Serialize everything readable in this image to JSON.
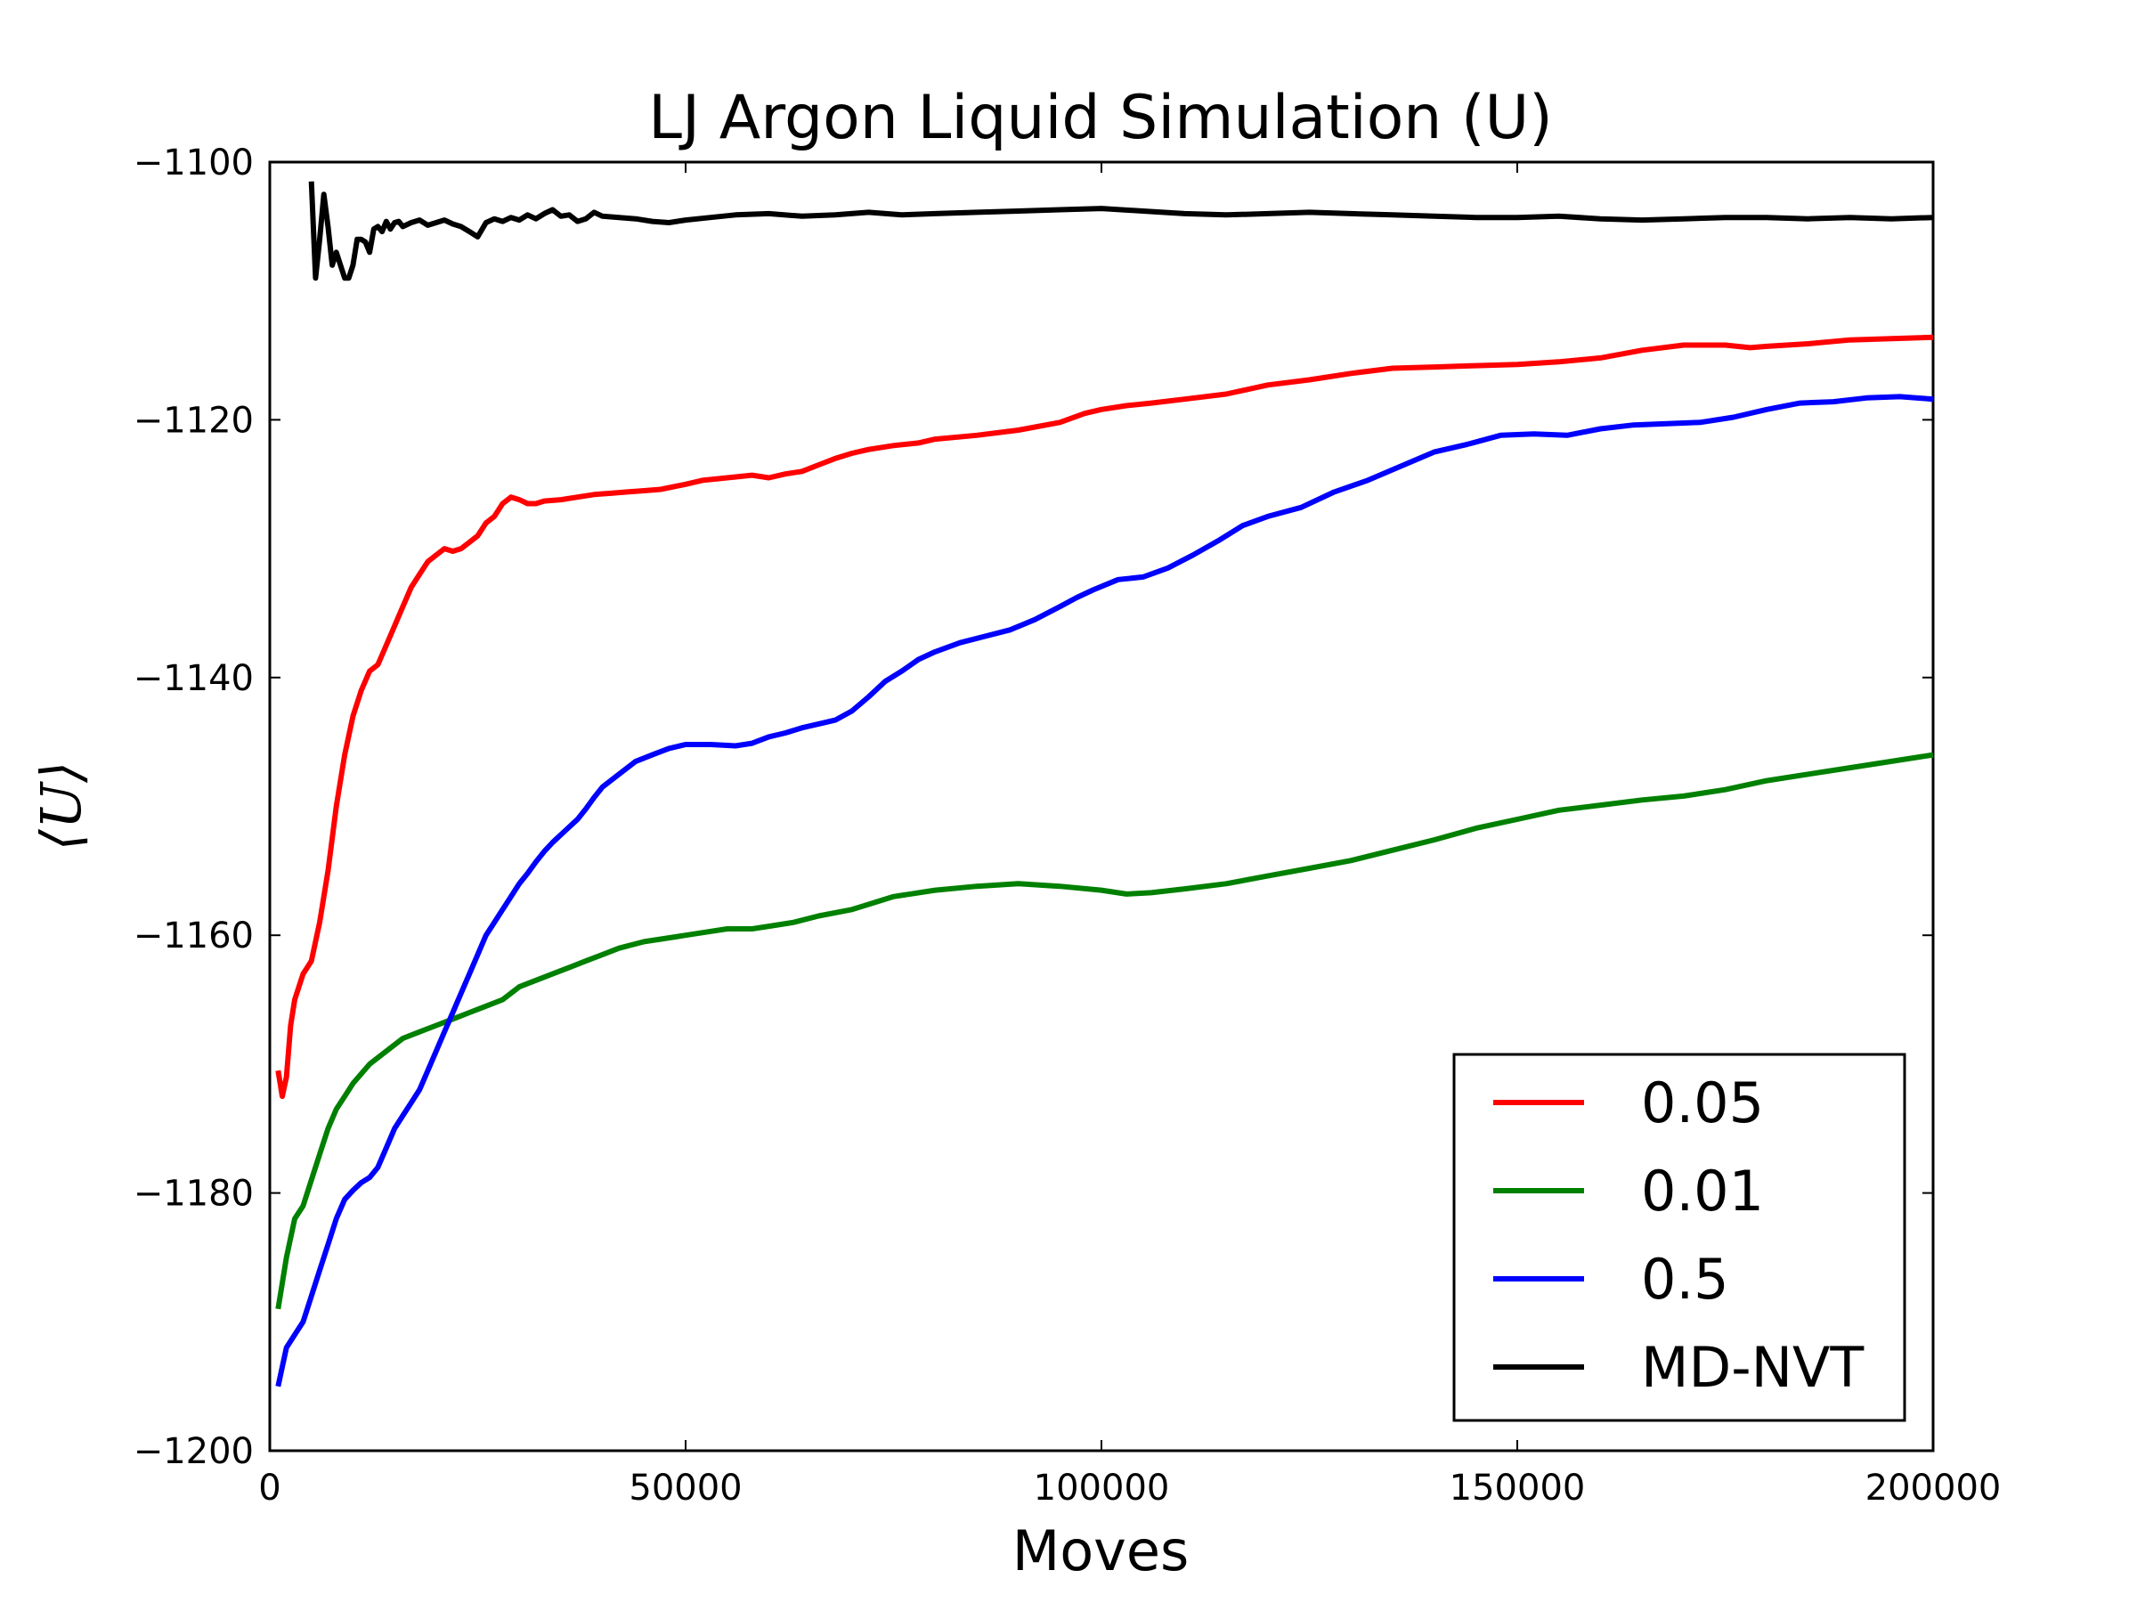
{
  "chart_data": {
    "type": "line",
    "title": "LJ Argon Liquid Simulation (U)",
    "xlabel": "Moves",
    "ylabel": "⟨U⟩",
    "xlim": [
      0,
      200000
    ],
    "ylim": [
      -1200,
      -1100
    ],
    "xticks": [
      0,
      50000,
      100000,
      150000,
      200000
    ],
    "xtick_labels": [
      "0",
      "50000",
      "100000",
      "150000",
      "200000"
    ],
    "yticks": [
      -1200,
      -1180,
      -1160,
      -1140,
      -1120,
      -1100
    ],
    "ytick_labels": [
      "−1200",
      "−1180",
      "−1160",
      "−1140",
      "−1120",
      "−1100"
    ],
    "grid": false,
    "legend_position": "lower-right",
    "series": [
      {
        "name": "0.05",
        "color": "#ff0000",
        "x": [
          1000,
          1500,
          2000,
          2500,
          3000,
          4000,
          5000,
          6000,
          7000,
          8000,
          9000,
          10000,
          11000,
          12000,
          13000,
          14000,
          15000,
          16000,
          17000,
          18000,
          19000,
          20000,
          21000,
          22000,
          23000,
          24000,
          25000,
          26000,
          27000,
          28000,
          29000,
          30000,
          31000,
          32000,
          33000,
          35000,
          37000,
          39000,
          41000,
          43000,
          45000,
          47000,
          50000,
          52000,
          55000,
          58000,
          60000,
          62000,
          64000,
          66000,
          68000,
          70000,
          72000,
          75000,
          78000,
          80000,
          85000,
          90000,
          95000,
          98000,
          100000,
          103000,
          106000,
          110000,
          115000,
          120000,
          125000,
          130000,
          135000,
          140000,
          145000,
          150000,
          155000,
          160000,
          165000,
          170000,
          175000,
          178000,
          180000,
          185000,
          190000,
          195000,
          200000
        ],
        "values": [
          -1170.5,
          -1172.5,
          -1171,
          -1167,
          -1165,
          -1163,
          -1162,
          -1159,
          -1155,
          -1150,
          -1146,
          -1143,
          -1141,
          -1139.5,
          -1139,
          -1137.5,
          -1136,
          -1134.5,
          -1133,
          -1132,
          -1131,
          -1130.5,
          -1130,
          -1130.2,
          -1130,
          -1129.5,
          -1129,
          -1128,
          -1127.5,
          -1126.5,
          -1126,
          -1126.2,
          -1126.5,
          -1126.5,
          -1126.3,
          -1126.2,
          -1126,
          -1125.8,
          -1125.7,
          -1125.6,
          -1125.5,
          -1125.4,
          -1125,
          -1124.7,
          -1124.5,
          -1124.3,
          -1124.5,
          -1124.2,
          -1124,
          -1123.5,
          -1123,
          -1122.6,
          -1122.3,
          -1122,
          -1121.8,
          -1121.5,
          -1121.2,
          -1120.8,
          -1120.2,
          -1119.5,
          -1119.2,
          -1118.9,
          -1118.7,
          -1118.4,
          -1118,
          -1117.3,
          -1116.9,
          -1116.4,
          -1116,
          -1115.9,
          -1115.8,
          -1115.7,
          -1115.5,
          -1115.2,
          -1114.6,
          -1114.2,
          -1114.2,
          -1114.4,
          -1114.3,
          -1114.1,
          -1113.8,
          -1113.7,
          -1113.6
        ]
      },
      {
        "name": "0.01",
        "color": "#008000",
        "x": [
          1000,
          1500,
          2000,
          3000,
          4000,
          5000,
          6000,
          7000,
          8000,
          9000,
          10000,
          12000,
          14000,
          16000,
          18000,
          20000,
          22000,
          24000,
          26000,
          28000,
          30000,
          32000,
          34000,
          36000,
          38000,
          40000,
          42000,
          45000,
          48000,
          50000,
          52000,
          55000,
          58000,
          60000,
          63000,
          66000,
          70000,
          75000,
          80000,
          85000,
          90000,
          95000,
          100000,
          103000,
          106000,
          110000,
          115000,
          120000,
          125000,
          130000,
          135000,
          140000,
          145000,
          150000,
          155000,
          160000,
          165000,
          170000,
          175000,
          180000,
          185000,
          190000,
          195000,
          200000
        ],
        "values": [
          -1189,
          -1187,
          -1185,
          -1182,
          -1181,
          -1179,
          -1177,
          -1175,
          -1173.5,
          -1172.5,
          -1171.5,
          -1170,
          -1169,
          -1168,
          -1167.5,
          -1167,
          -1166.5,
          -1166,
          -1165.5,
          -1165,
          -1164,
          -1163.5,
          -1163,
          -1162.5,
          -1162,
          -1161.5,
          -1161,
          -1160.5,
          -1160.2,
          -1160,
          -1159.8,
          -1159.5,
          -1159.5,
          -1159.3,
          -1159,
          -1158.5,
          -1158,
          -1157,
          -1156.5,
          -1156.2,
          -1156,
          -1156.2,
          -1156.5,
          -1156.8,
          -1156.7,
          -1156.4,
          -1156,
          -1155.4,
          -1154.8,
          -1154.2,
          -1153.4,
          -1152.6,
          -1151.7,
          -1151,
          -1150.3,
          -1149.9,
          -1149.5,
          -1149.2,
          -1148.7,
          -1148,
          -1147.5,
          -1147,
          -1146.5,
          -1146
        ]
      },
      {
        "name": "0.5",
        "color": "#0000ff",
        "x": [
          1000,
          1500,
          2000,
          3000,
          4000,
          5000,
          6000,
          7000,
          8000,
          9000,
          10000,
          11000,
          12000,
          13000,
          14000,
          15000,
          16000,
          17000,
          18000,
          19000,
          20000,
          21000,
          22000,
          23000,
          24000,
          25000,
          26000,
          27000,
          28000,
          29000,
          30000,
          31000,
          32000,
          33000,
          34000,
          35000,
          36000,
          37000,
          38000,
          39000,
          40000,
          42000,
          44000,
          46000,
          48000,
          50000,
          53000,
          56000,
          58000,
          60000,
          62000,
          64000,
          66000,
          68000,
          70000,
          72000,
          74000,
          76000,
          78000,
          80000,
          83000,
          86000,
          89000,
          92000,
          95000,
          97000,
          99000,
          102000,
          105000,
          108000,
          111000,
          114000,
          117000,
          120000,
          124000,
          128000,
          132000,
          136000,
          140000,
          144000,
          148000,
          152000,
          156000,
          160000,
          164000,
          168000,
          172000,
          176000,
          180000,
          184000,
          188000,
          192000,
          196000,
          200000
        ],
        "values": [
          -1195,
          -1193.5,
          -1192,
          -1191,
          -1190,
          -1188,
          -1186,
          -1184,
          -1182,
          -1180.5,
          -1179.8,
          -1179.2,
          -1178.8,
          -1178,
          -1176.5,
          -1175,
          -1174,
          -1173,
          -1172,
          -1170.5,
          -1169,
          -1167.5,
          -1166,
          -1164.5,
          -1163,
          -1161.5,
          -1160,
          -1159,
          -1158,
          -1157,
          -1156,
          -1155.2,
          -1154.3,
          -1153.5,
          -1152.8,
          -1152.2,
          -1151.6,
          -1151,
          -1150.2,
          -1149.3,
          -1148.5,
          -1147.5,
          -1146.5,
          -1146,
          -1145.5,
          -1145.2,
          -1145.2,
          -1145.3,
          -1145.1,
          -1144.6,
          -1144.3,
          -1143.9,
          -1143.6,
          -1143.3,
          -1142.6,
          -1141.5,
          -1140.3,
          -1139.5,
          -1138.6,
          -1138,
          -1137.3,
          -1136.8,
          -1136.3,
          -1135.5,
          -1134.5,
          -1133.8,
          -1133.2,
          -1132.4,
          -1132.2,
          -1131.5,
          -1130.5,
          -1129.4,
          -1128.2,
          -1127.5,
          -1126.8,
          -1125.6,
          -1124.7,
          -1123.6,
          -1122.5,
          -1121.9,
          -1121.2,
          -1121.1,
          -1121.2,
          -1120.7,
          -1120.4,
          -1120.3,
          -1120.2,
          -1119.8,
          -1119.2,
          -1118.7,
          -1118.6,
          -1118.3,
          -1118.2,
          -1118.4
        ]
      },
      {
        "name": "MD-NVT",
        "color": "#000000",
        "x": [
          5000,
          5500,
          6000,
          6500,
          7000,
          7500,
          8000,
          8500,
          9000,
          9500,
          10000,
          10500,
          11000,
          11500,
          12000,
          12500,
          13000,
          13500,
          14000,
          14500,
          15000,
          15500,
          16000,
          17000,
          18000,
          19000,
          20000,
          21000,
          22000,
          23000,
          24000,
          25000,
          26000,
          27000,
          28000,
          29000,
          30000,
          31000,
          32000,
          33000,
          34000,
          35000,
          36000,
          37000,
          38000,
          39000,
          40000,
          42000,
          44000,
          46000,
          48000,
          50000,
          53000,
          56000,
          60000,
          64000,
          68000,
          72000,
          76000,
          80000,
          85000,
          90000,
          95000,
          100000,
          105000,
          110000,
          115000,
          120000,
          125000,
          130000,
          135000,
          140000,
          145000,
          150000,
          155000,
          160000,
          165000,
          170000,
          175000,
          180000,
          185000,
          190000,
          195000,
          200000
        ],
        "values": [
          -1101.5,
          -1109,
          -1106,
          -1102.5,
          -1105,
          -1108,
          -1107,
          -1108,
          -1109,
          -1109,
          -1108,
          -1106,
          -1106,
          -1106.2,
          -1107,
          -1105.2,
          -1105,
          -1105.4,
          -1104.6,
          -1105.2,
          -1104.7,
          -1104.6,
          -1105,
          -1104.7,
          -1104.5,
          -1104.9,
          -1104.7,
          -1104.5,
          -1104.8,
          -1105,
          -1105.4,
          -1105.8,
          -1104.7,
          -1104.4,
          -1104.6,
          -1104.3,
          -1104.5,
          -1104.1,
          -1104.4,
          -1104,
          -1103.7,
          -1104.2,
          -1104.1,
          -1104.6,
          -1104.4,
          -1103.9,
          -1104.2,
          -1104.3,
          -1104.4,
          -1104.6,
          -1104.7,
          -1104.5,
          -1104.3,
          -1104.1,
          -1104,
          -1104.2,
          -1104.1,
          -1103.9,
          -1104.1,
          -1104,
          -1103.9,
          -1103.8,
          -1103.7,
          -1103.6,
          -1103.8,
          -1104,
          -1104.1,
          -1104,
          -1103.9,
          -1104,
          -1104.1,
          -1104.2,
          -1104.3,
          -1104.3,
          -1104.2,
          -1104.4,
          -1104.5,
          -1104.4,
          -1104.3,
          -1104.3,
          -1104.4,
          -1104.3,
          -1104.4,
          -1104.3
        ]
      }
    ]
  }
}
